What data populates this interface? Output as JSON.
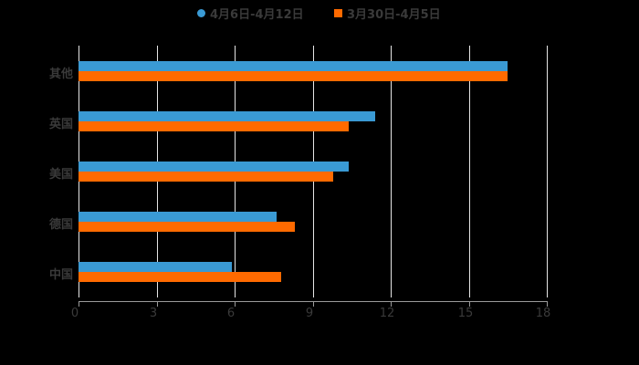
{
  "chart_data": {
    "type": "bar",
    "orientation": "horizontal",
    "title": "",
    "xlabel": "",
    "ylabel": "",
    "categories": [
      "其他",
      "英国",
      "美国",
      "德国",
      "中国"
    ],
    "series": [
      {
        "name": "4月6日-4月12日",
        "color": "#3a9ad4",
        "marker": "circle",
        "values": [
          16.5,
          11.4,
          10.4,
          7.6,
          5.9
        ]
      },
      {
        "name": "3月30日-4月5日",
        "color": "#ff6a00",
        "marker": "square",
        "values": [
          16.5,
          10.4,
          9.8,
          8.3,
          7.8
        ]
      }
    ],
    "xlim": [
      0,
      18
    ],
    "x_ticks": [
      "0",
      "3",
      "6",
      "9",
      "12",
      "15",
      "18"
    ],
    "grid": true,
    "legend_position": "top"
  },
  "legend": {
    "items": [
      {
        "label": "4月6日-4月12日"
      },
      {
        "label": "3月30日-4月5日"
      }
    ]
  }
}
